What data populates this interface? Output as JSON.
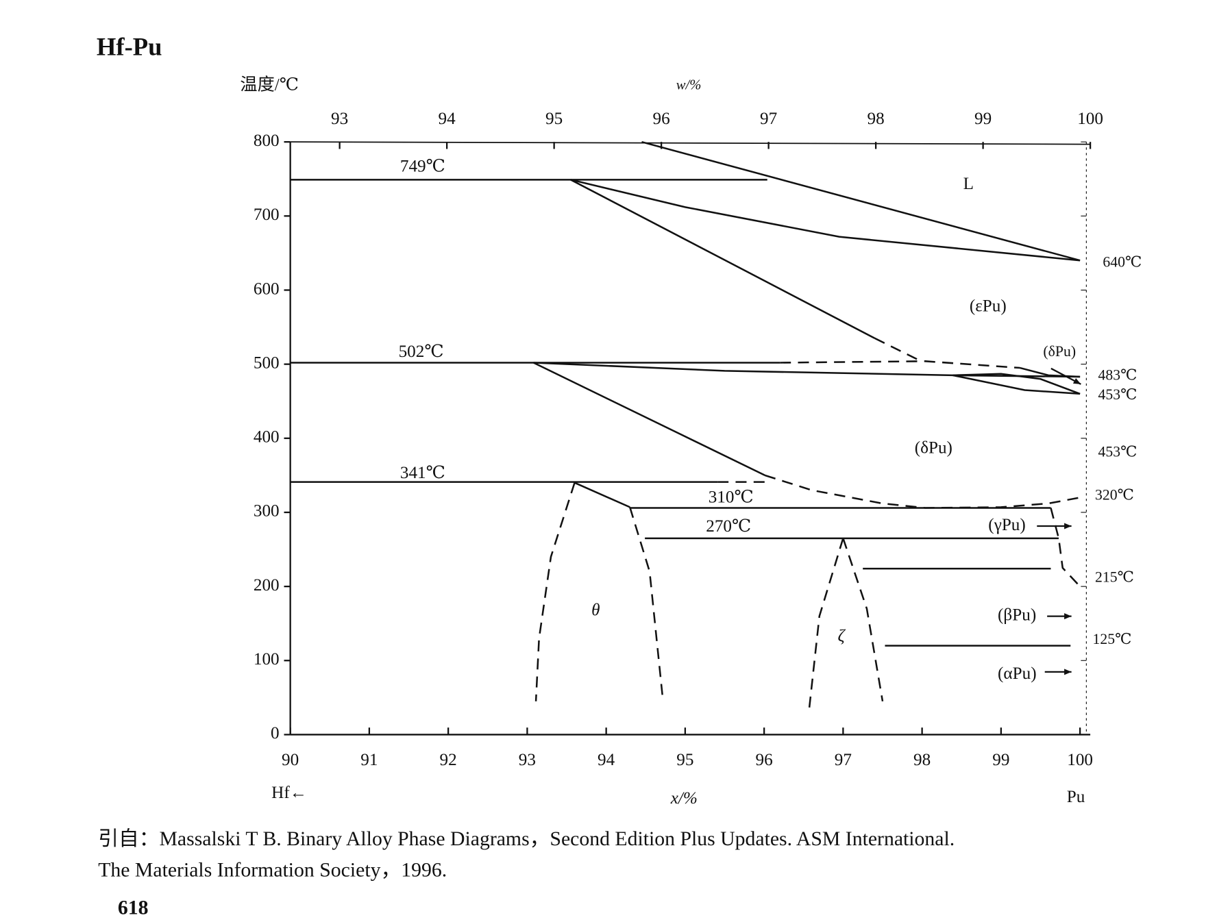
{
  "title": "Hf-Pu",
  "chart_data": {
    "type": "line",
    "ylabel": "温度/℃",
    "x2label": "w/%",
    "xlabel": "x/%",
    "left_element": "Hf←",
    "right_element": "Pu",
    "xlim": [
      90,
      100.13
    ],
    "xticks": [
      90,
      91,
      92,
      93,
      94,
      95,
      96,
      97,
      98,
      99,
      100
    ],
    "x2lim": [
      92.54,
      100
    ],
    "x2ticks": [
      93,
      94,
      95,
      96,
      97,
      98,
      99,
      100
    ],
    "ylim": [
      0,
      800
    ],
    "yticks": [
      0,
      100,
      200,
      300,
      400,
      500,
      600,
      700,
      800
    ],
    "grid": false,
    "color": "#111111",
    "series": [
      {
        "x": [
          94.45,
          100
        ],
        "values": [
          800,
          640
        ]
      },
      {
        "x": [
          90,
          96.04
        ],
        "values": [
          749,
          749
        ]
      },
      {
        "x": [
          93.55,
          95.0,
          96.95,
          100
        ],
        "values": [
          749,
          712,
          672,
          640
        ]
      },
      {
        "x": [
          93.55,
          97.4
        ],
        "values": [
          749,
          535
        ]
      },
      {
        "x": [
          97.4,
          97.95
        ],
        "values": [
          535,
          506
        ],
        "dashed": true
      },
      {
        "x": [
          90,
          96.2
        ],
        "values": [
          502,
          502
        ]
      },
      {
        "x": [
          96.2,
          98.04,
          99.24
        ],
        "values": [
          502,
          504,
          495
        ],
        "dashed": true
      },
      {
        "x": [
          99.24,
          99.6,
          100
        ],
        "values": [
          495,
          485,
          483
        ]
      },
      {
        "x": [
          93.08,
          95.5,
          98.39,
          100
        ],
        "values": [
          502,
          491,
          485,
          483
        ]
      },
      {
        "x": [
          98.39,
          99.0,
          99.5,
          100
        ],
        "values": [
          485,
          487,
          480,
          460
        ]
      },
      {
        "x": [
          98.39,
          99.3,
          100
        ],
        "values": [
          485,
          465,
          460
        ]
      },
      {
        "x": [
          93.08,
          96.01
        ],
        "values": [
          502,
          350
        ]
      },
      {
        "x": [
          96.01,
          96.6,
          97.5,
          98.04,
          99.0,
          99.6,
          100
        ],
        "values": [
          350,
          330,
          312,
          306,
          307,
          312,
          320
        ],
        "dashed": true
      },
      {
        "x": [
          90,
          95.41
        ],
        "values": [
          341,
          341
        ]
      },
      {
        "x": [
          95.41,
          96.01
        ],
        "values": [
          341,
          341
        ],
        "dashed": true
      },
      {
        "x": [
          93.6,
          93.3,
          93.15,
          93.11
        ],
        "values": [
          340,
          240,
          130,
          45
        ],
        "dashed": true
      },
      {
        "x": [
          93.6,
          94.3
        ],
        "values": [
          340,
          307
        ]
      },
      {
        "x": [
          94.3,
          99.63
        ],
        "values": [
          306,
          306
        ]
      },
      {
        "x": [
          94.3,
          94.55,
          94.72
        ],
        "values": [
          307,
          220,
          45
        ],
        "dashed": true
      },
      {
        "x": [
          94.49,
          99.73
        ],
        "values": [
          265,
          265
        ]
      },
      {
        "x": [
          97.0,
          96.7,
          96.57
        ],
        "values": [
          265,
          160,
          34
        ],
        "dashed": true
      },
      {
        "x": [
          97.0,
          97.3,
          97.5
        ],
        "values": [
          265,
          170,
          45
        ],
        "dashed": true
      },
      {
        "x": [
          97.25,
          99.63
        ],
        "values": [
          224,
          224
        ]
      },
      {
        "x": [
          97.53,
          99.88
        ],
        "values": [
          120,
          120
        ]
      },
      {
        "x": [
          99.63,
          99.73,
          99.78,
          100
        ],
        "values": [
          306,
          265,
          225,
          200
        ],
        "dashed": true
      }
    ],
    "annotations": [
      "749℃",
      "502℃",
      "341℃",
      "310℃",
      "270℃",
      "L",
      "(εPu)",
      "(δPu)",
      "(δPu)",
      "(γPu)",
      "(βPu)",
      "(αPu)",
      "θ",
      "ζ",
      "640℃",
      "483℃",
      "453℃",
      "453℃",
      "320℃",
      "215℃",
      "125℃"
    ]
  },
  "caption": [
    "引自：Massalski T B. Binary Alloy Phase Diagrams，Second Edition Plus Updates. ASM International.",
    "The Materials Information Society，1996."
  ],
  "page_number": "618"
}
